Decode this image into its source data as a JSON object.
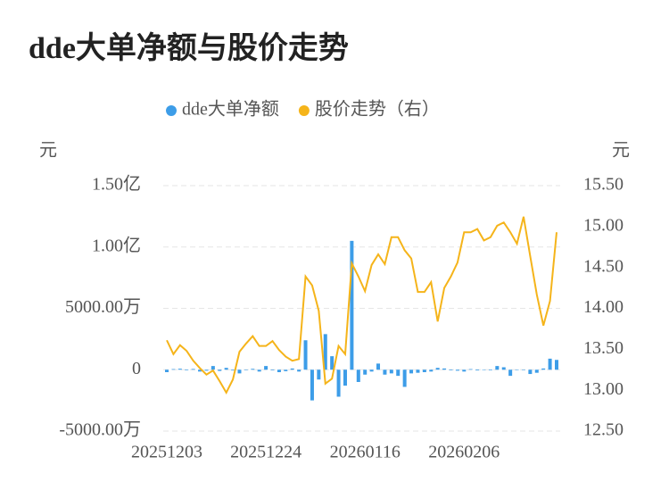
{
  "chart_data": {
    "type": "bar-line",
    "title": "dde大单净额与股价走势",
    "y_label": "元",
    "y2_label": "元",
    "categories": [
      "20251203",
      null,
      null,
      null,
      null,
      null,
      null,
      null,
      null,
      null,
      null,
      null,
      null,
      null,
      null,
      "20251224",
      null,
      null,
      null,
      null,
      null,
      null,
      null,
      null,
      null,
      null,
      null,
      null,
      null,
      null,
      "20260116",
      null,
      null,
      null,
      null,
      null,
      null,
      null,
      null,
      null,
      null,
      null,
      null,
      null,
      null,
      "20260206",
      null,
      null,
      null,
      null,
      null,
      null,
      null,
      null,
      null,
      null,
      null,
      null,
      null,
      null
    ],
    "series": [
      {
        "name": "dde大单净额",
        "color": "#3d9de8",
        "axis": "y",
        "values": [
          -2000000,
          500000,
          800000,
          -500000,
          600000,
          -1500000,
          -800000,
          3000000,
          -1000000,
          1500000,
          -600000,
          -3000000,
          -400000,
          700000,
          -1500000,
          3000000,
          -500000,
          -2000000,
          -1200000,
          1000000,
          -1500000,
          24000000,
          -25000000,
          -8000000,
          29000000,
          11000000,
          -22000000,
          -13000000,
          105000000,
          -10000000,
          -4000000,
          -1500000,
          5000000,
          -4000000,
          -3000000,
          -5000000,
          -14000000,
          -3000000,
          -2500000,
          -2000000,
          -1500000,
          1500000,
          1000000,
          -500000,
          -800000,
          -1500000,
          500000,
          -600000,
          -300000,
          -500000,
          3000000,
          2000000,
          -5000000,
          -400000,
          -300000,
          -3500000,
          -2500000,
          1000000,
          9000000,
          8000000
        ]
      },
      {
        "name": "股价走势（右）",
        "color": "#f5b41a",
        "axis": "y2",
        "values": [
          13.61,
          13.44,
          13.55,
          13.48,
          13.36,
          13.27,
          13.19,
          13.24,
          13.11,
          12.97,
          13.13,
          13.47,
          13.57,
          13.66,
          13.54,
          13.54,
          13.6,
          13.49,
          13.41,
          13.36,
          13.38,
          14.39,
          14.28,
          13.97,
          13.08,
          13.14,
          13.54,
          13.44,
          14.55,
          14.39,
          14.21,
          14.53,
          14.66,
          14.54,
          14.87,
          14.87,
          14.71,
          14.61,
          14.2,
          14.2,
          14.32,
          13.84,
          14.25,
          14.39,
          14.56,
          14.93,
          14.93,
          14.97,
          14.83,
          14.87,
          15.01,
          15.05,
          14.93,
          14.79,
          15.12,
          14.64,
          14.17,
          13.79,
          14.09,
          14.93
        ]
      }
    ],
    "ylim": [
      -50000000,
      150000000
    ],
    "yticks": [
      {
        "value": -50000000,
        "label": "-5000.00万"
      },
      0,
      {
        "value": 50000000,
        "label": "5000.00万"
      },
      {
        "value": 100000000,
        "label": "1.00亿"
      },
      {
        "value": 150000000,
        "label": "1.50亿"
      }
    ],
    "y2lim": [
      12.5,
      15.5
    ],
    "y2ticks": [
      {
        "value": 12.5,
        "label": "12.50"
      },
      {
        "value": 13,
        "label": "13.00"
      },
      {
        "value": 13.5,
        "label": "13.50"
      },
      {
        "value": 14,
        "label": "14.00"
      },
      {
        "value": 14.5,
        "label": "14.50"
      },
      {
        "value": 15,
        "label": "15.00"
      },
      {
        "value": 15.5,
        "label": "15.50"
      }
    ],
    "grid": true
  }
}
